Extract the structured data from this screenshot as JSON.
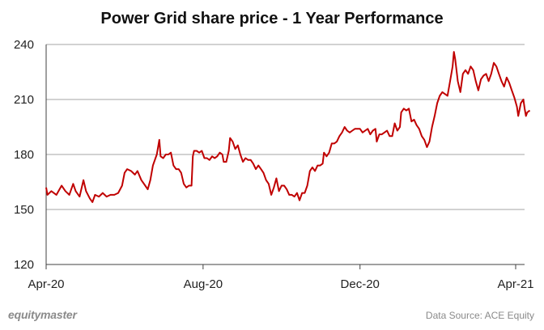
{
  "chart_data": {
    "type": "line",
    "title": "Power Grid share price - 1 Year Performance",
    "xlabel": "",
    "ylabel": "",
    "ylim": [
      120,
      240
    ],
    "yticks": [
      "120",
      "150",
      "180",
      "210",
      "240"
    ],
    "xticks": [
      {
        "label": "Apr-20",
        "date": "2020-04-01"
      },
      {
        "label": "Aug-20",
        "date": "2020-08-01"
      },
      {
        "label": "Dec-20",
        "date": "2020-12-01"
      },
      {
        "label": "Apr-21",
        "date": "2021-04-01"
      }
    ],
    "grid": "horizontal",
    "line_color": "#c00000",
    "series": [
      {
        "name": "",
        "points": [
          [
            "2020-04-01",
            162
          ],
          [
            "2020-04-02",
            158
          ],
          [
            "2020-04-05",
            160
          ],
          [
            "2020-04-09",
            158
          ],
          [
            "2020-04-13",
            163
          ],
          [
            "2020-04-16",
            160
          ],
          [
            "2020-04-19",
            158
          ],
          [
            "2020-04-22",
            164
          ],
          [
            "2020-04-24",
            160
          ],
          [
            "2020-04-27",
            157
          ],
          [
            "2020-04-30",
            166
          ],
          [
            "2020-05-02",
            160
          ],
          [
            "2020-05-05",
            156
          ],
          [
            "2020-05-07",
            154
          ],
          [
            "2020-05-09",
            158
          ],
          [
            "2020-05-12",
            157
          ],
          [
            "2020-05-15",
            159
          ],
          [
            "2020-05-18",
            157
          ],
          [
            "2020-05-21",
            158
          ],
          [
            "2020-05-24",
            158
          ],
          [
            "2020-05-27",
            159
          ],
          [
            "2020-05-30",
            163
          ],
          [
            "2020-06-01",
            170
          ],
          [
            "2020-06-03",
            172
          ],
          [
            "2020-06-06",
            171
          ],
          [
            "2020-06-09",
            169
          ],
          [
            "2020-06-11",
            171
          ],
          [
            "2020-06-14",
            166
          ],
          [
            "2020-06-17",
            163
          ],
          [
            "2020-06-19",
            161
          ],
          [
            "2020-06-21",
            166
          ],
          [
            "2020-06-23",
            174
          ],
          [
            "2020-06-26",
            180
          ],
          [
            "2020-06-28",
            188
          ],
          [
            "2020-06-29",
            179
          ],
          [
            "2020-07-01",
            178
          ],
          [
            "2020-07-03",
            180
          ],
          [
            "2020-07-05",
            180
          ],
          [
            "2020-07-07",
            181
          ],
          [
            "2020-07-09",
            174
          ],
          [
            "2020-07-11",
            172
          ],
          [
            "2020-07-13",
            172
          ],
          [
            "2020-07-15",
            170
          ],
          [
            "2020-07-17",
            164
          ],
          [
            "2020-07-19",
            162
          ],
          [
            "2020-07-21",
            163
          ],
          [
            "2020-07-23",
            163
          ],
          [
            "2020-07-24",
            179
          ],
          [
            "2020-07-25",
            182
          ],
          [
            "2020-07-27",
            182
          ],
          [
            "2020-07-29",
            181
          ],
          [
            "2020-07-31",
            182
          ],
          [
            "2020-08-02",
            178
          ],
          [
            "2020-08-04",
            178
          ],
          [
            "2020-08-06",
            177
          ],
          [
            "2020-08-08",
            179
          ],
          [
            "2020-08-10",
            178
          ],
          [
            "2020-08-12",
            179
          ],
          [
            "2020-08-14",
            181
          ],
          [
            "2020-08-16",
            180
          ],
          [
            "2020-08-17",
            176
          ],
          [
            "2020-08-19",
            176
          ],
          [
            "2020-08-21",
            182
          ],
          [
            "2020-08-22",
            189
          ],
          [
            "2020-08-24",
            187
          ],
          [
            "2020-08-26",
            183
          ],
          [
            "2020-08-28",
            185
          ],
          [
            "2020-08-30",
            180
          ],
          [
            "2020-09-01",
            176
          ],
          [
            "2020-09-03",
            178
          ],
          [
            "2020-09-05",
            177
          ],
          [
            "2020-09-07",
            177
          ],
          [
            "2020-09-09",
            175
          ],
          [
            "2020-09-11",
            172
          ],
          [
            "2020-09-13",
            174
          ],
          [
            "2020-09-15",
            172
          ],
          [
            "2020-09-17",
            170
          ],
          [
            "2020-09-19",
            166
          ],
          [
            "2020-09-21",
            164
          ],
          [
            "2020-09-23",
            158
          ],
          [
            "2020-09-25",
            162
          ],
          [
            "2020-09-27",
            167
          ],
          [
            "2020-09-29",
            160
          ],
          [
            "2020-10-01",
            163
          ],
          [
            "2020-10-03",
            163
          ],
          [
            "2020-10-05",
            161
          ],
          [
            "2020-10-07",
            158
          ],
          [
            "2020-10-09",
            158
          ],
          [
            "2020-10-11",
            157
          ],
          [
            "2020-10-13",
            159
          ],
          [
            "2020-10-15",
            155
          ],
          [
            "2020-10-17",
            159
          ],
          [
            "2020-10-19",
            159
          ],
          [
            "2020-10-21",
            163
          ],
          [
            "2020-10-23",
            171
          ],
          [
            "2020-10-25",
            173
          ],
          [
            "2020-10-27",
            171
          ],
          [
            "2020-10-29",
            174
          ],
          [
            "2020-10-31",
            174
          ],
          [
            "2020-11-02",
            175
          ],
          [
            "2020-11-03",
            181
          ],
          [
            "2020-11-05",
            179
          ],
          [
            "2020-11-07",
            181
          ],
          [
            "2020-11-09",
            186
          ],
          [
            "2020-11-11",
            186
          ],
          [
            "2020-11-13",
            187
          ],
          [
            "2020-11-15",
            190
          ],
          [
            "2020-11-17",
            192
          ],
          [
            "2020-11-19",
            195
          ],
          [
            "2020-11-21",
            193
          ],
          [
            "2020-11-23",
            192
          ],
          [
            "2020-11-25",
            193
          ],
          [
            "2020-11-27",
            194
          ],
          [
            "2020-11-29",
            194
          ],
          [
            "2020-12-01",
            194
          ],
          [
            "2020-12-03",
            192
          ],
          [
            "2020-12-05",
            193
          ],
          [
            "2020-12-07",
            194
          ],
          [
            "2020-12-09",
            191
          ],
          [
            "2020-12-11",
            193
          ],
          [
            "2020-12-13",
            194
          ],
          [
            "2020-12-14",
            187
          ],
          [
            "2020-12-16",
            191
          ],
          [
            "2020-12-18",
            191
          ],
          [
            "2020-12-20",
            192
          ],
          [
            "2020-12-22",
            193
          ],
          [
            "2020-12-24",
            190
          ],
          [
            "2020-12-26",
            190
          ],
          [
            "2020-12-28",
            197
          ],
          [
            "2020-12-30",
            193
          ],
          [
            "2021-01-01",
            195
          ],
          [
            "2021-01-02",
            203
          ],
          [
            "2021-01-04",
            205
          ],
          [
            "2021-01-06",
            204
          ],
          [
            "2021-01-08",
            205
          ],
          [
            "2021-01-10",
            198
          ],
          [
            "2021-01-12",
            199
          ],
          [
            "2021-01-14",
            196
          ],
          [
            "2021-01-16",
            194
          ],
          [
            "2021-01-18",
            190
          ],
          [
            "2021-01-20",
            188
          ],
          [
            "2021-01-22",
            184
          ],
          [
            "2021-01-24",
            187
          ],
          [
            "2021-01-26",
            195
          ],
          [
            "2021-01-28",
            201
          ],
          [
            "2021-01-30",
            208
          ],
          [
            "2021-02-01",
            212
          ],
          [
            "2021-02-03",
            214
          ],
          [
            "2021-02-05",
            213
          ],
          [
            "2021-02-07",
            212
          ],
          [
            "2021-02-09",
            220
          ],
          [
            "2021-02-11",
            228
          ],
          [
            "2021-02-12",
            236
          ],
          [
            "2021-02-13",
            232
          ],
          [
            "2021-02-15",
            220
          ],
          [
            "2021-02-17",
            214
          ],
          [
            "2021-02-19",
            224
          ],
          [
            "2021-02-21",
            226
          ],
          [
            "2021-02-23",
            224
          ],
          [
            "2021-02-25",
            228
          ],
          [
            "2021-02-27",
            226
          ],
          [
            "2021-03-01",
            220
          ],
          [
            "2021-03-03",
            215
          ],
          [
            "2021-03-05",
            221
          ],
          [
            "2021-03-07",
            223
          ],
          [
            "2021-03-09",
            224
          ],
          [
            "2021-03-11",
            220
          ],
          [
            "2021-03-13",
            224
          ],
          [
            "2021-03-15",
            230
          ],
          [
            "2021-03-17",
            228
          ],
          [
            "2021-03-19",
            224
          ],
          [
            "2021-03-21",
            220
          ],
          [
            "2021-03-23",
            217
          ],
          [
            "2021-03-25",
            222
          ],
          [
            "2021-03-27",
            219
          ],
          [
            "2021-03-29",
            215
          ],
          [
            "2021-03-31",
            211
          ],
          [
            "2021-04-02",
            206
          ],
          [
            "2021-04-03",
            201
          ],
          [
            "2021-04-05",
            208
          ],
          [
            "2021-04-07",
            210
          ],
          [
            "2021-04-08",
            205
          ],
          [
            "2021-04-09",
            201
          ],
          [
            "2021-04-10",
            203
          ],
          [
            "2021-04-12",
            204
          ]
        ]
      }
    ]
  },
  "footer": {
    "brand": "equitymaster",
    "source": "Data Source: ACE Equity"
  }
}
